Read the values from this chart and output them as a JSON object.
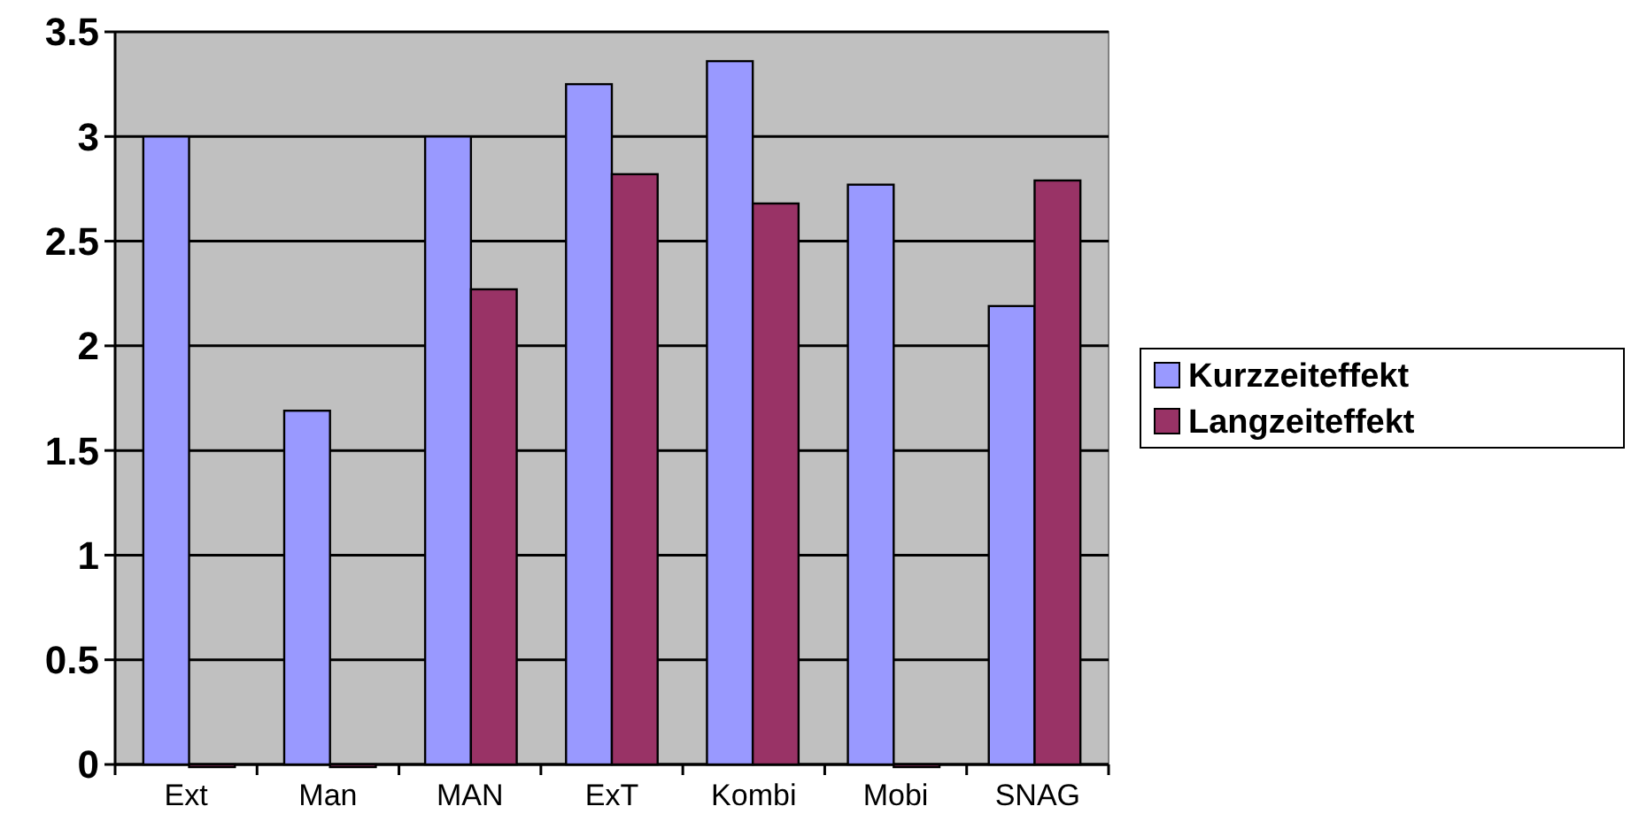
{
  "chart_data": {
    "type": "bar",
    "categories": [
      "Ext",
      "Man",
      "MAN",
      "ExT",
      "Kombi",
      "Mobi",
      "SNAG"
    ],
    "series": [
      {
        "name": "Kurzzeiteffekt",
        "color": "#9999ff",
        "values": [
          3.0,
          1.69,
          3.0,
          3.25,
          3.36,
          2.77,
          2.19
        ]
      },
      {
        "name": "Langzeiteffekt",
        "color": "#993366",
        "values": [
          0,
          0,
          2.27,
          2.82,
          2.68,
          0,
          2.79
        ]
      }
    ],
    "ylim": [
      0,
      3.5
    ],
    "yticks": [
      0,
      0.5,
      1,
      1.5,
      2,
      2.5,
      3,
      3.5
    ],
    "grid": "y",
    "legend": "right"
  }
}
